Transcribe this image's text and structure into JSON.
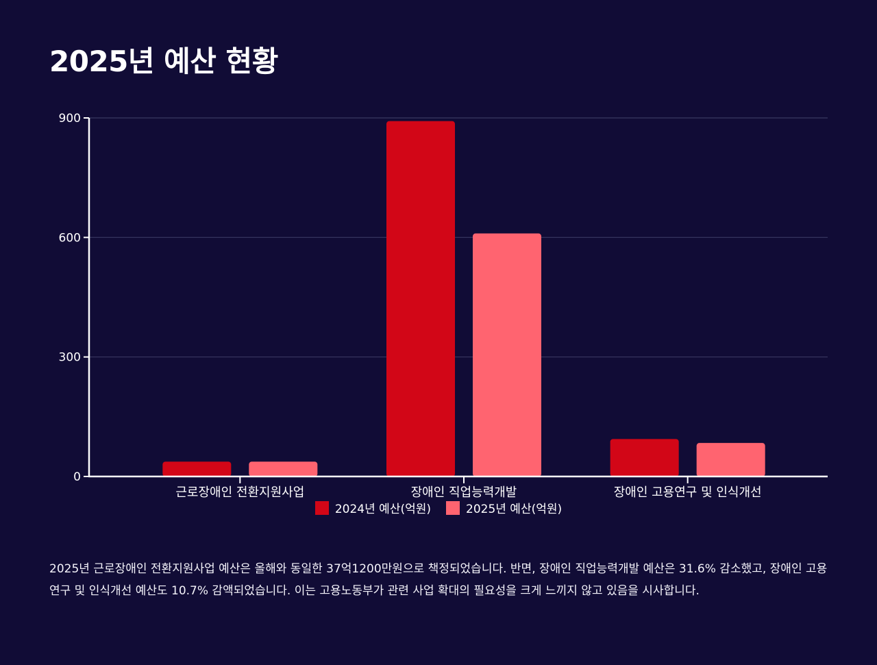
{
  "page": {
    "title": "2025년 예산 현황",
    "description": "2025년 근로장애인 전환지원사업 예산은 올해와 동일한 37억1200만원으로 책정되었습니다. 반면, 장애인 직업능력개발 예산은 31.6% 감소했고, 장애인 고용연구 및 인식개선 예산도 10.7% 감액되었습니다. 이는 고용노동부가 관련 사업 확대의 필요성을 크게 느끼지 않고 있음을 시사합니다."
  },
  "chart_data": {
    "type": "bar",
    "title": "2025년 예산 현황",
    "categories": [
      "근로장애인 전환지원사업",
      "장애인 직업능력개발",
      "장애인 고용연구 및 인식개선"
    ],
    "series": [
      {
        "name": "2024년 예산(억원)",
        "values": [
          37.12,
          892,
          94
        ],
        "color": "#d20617"
      },
      {
        "name": "2025년 예산(억원)",
        "values": [
          37.12,
          610,
          84
        ],
        "color": "#ff6470"
      }
    ],
    "yticks": [
      0,
      300,
      600,
      900
    ],
    "ylim": [
      0,
      900
    ],
    "grid": true,
    "legend_position": "bottom-center"
  }
}
